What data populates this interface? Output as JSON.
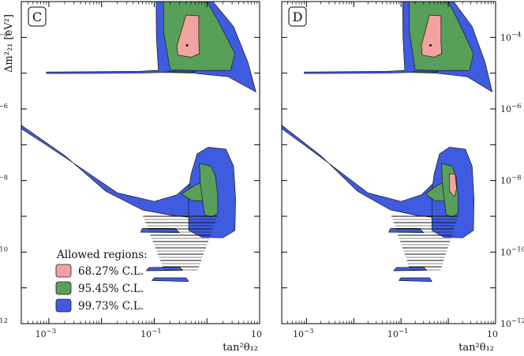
{
  "chart_data": [
    {
      "type": "contour",
      "panel_label": "C",
      "xlabel": "tan²θ₁₂",
      "ylabel": "Δm²₂₁ [eV²]",
      "x_scale": "log",
      "y_scale": "log",
      "xlim": [
        0.0003,
        10
      ],
      "ylim": [
        1e-12,
        0.001
      ],
      "x_ticks": [
        {
          "value": 0.001,
          "base": "10",
          "exp": "−3"
        },
        {
          "value": 0.1,
          "base": "10",
          "exp": "−1"
        },
        {
          "value": 10,
          "base": "10",
          "exp": ""
        }
      ],
      "y_ticks_left": [
        {
          "value": 0.0001,
          "base": "10",
          "exp": "−4"
        },
        {
          "value": 1e-06,
          "base": "10",
          "exp": "−6"
        },
        {
          "value": 1e-08,
          "base": "10",
          "exp": "−8"
        },
        {
          "value": 1e-10,
          "base": "10",
          "exp": "−10"
        },
        {
          "value": 1e-12,
          "base": "10",
          "exp": "−12"
        }
      ],
      "best_fit": {
        "x": 0.42,
        "y": 6e-05
      },
      "legend": {
        "title": "Allowed regions:",
        "placement": "bottom-left",
        "entries": [
          {
            "label": "68.27% C.L.",
            "color": "#f2a3a0"
          },
          {
            "label": "95.45% C.L.",
            "color": "#58a05a"
          },
          {
            "label": "99.73% C.L.",
            "color": "#3f5be0"
          }
        ]
      },
      "regions": [
        {
          "level": "99.73% C.L.",
          "color": "#3f5be0",
          "polygons": [
            [
              [
                0.108,
                0.001
              ],
              [
                1.3,
                0.001
              ],
              [
                3.2,
                0.0002
              ],
              [
                6,
                2e-05
              ],
              [
                8.5,
                3e-06
              ],
              [
                2.5,
                8e-06
              ],
              [
                0.55,
                1e-05
              ],
              [
                0.16,
                1.05e-05
              ],
              [
                0.05,
                1e-05
              ],
              [
                0.0009,
                9.8e-06
              ],
              [
                0.0009,
                1.08e-05
              ],
              [
                0.05,
                1.12e-05
              ],
              [
                0.12,
                1.2e-05
              ],
              [
                0.11,
                0.0001
              ]
            ],
            [
              [
                0.0003,
                2.8e-07
              ],
              [
                0.0003,
                3.5e-07
              ],
              [
                0.002,
                5e-08
              ],
              [
                0.012,
                5e-09
              ],
              [
                0.06,
                1.5e-09
              ],
              [
                0.22,
                1.05e-09
              ],
              [
                0.6,
                9e-10
              ],
              [
                1.2,
                1e-09
              ],
              [
                1.5,
                1.8e-09
              ],
              [
                1.4,
                5e-09
              ],
              [
                1.05,
                1.3e-08
              ],
              [
                0.55,
                1e-08
              ],
              [
                0.27,
                4e-09
              ],
              [
                0.1,
                2.6e-09
              ],
              [
                0.02,
                4.5e-09
              ],
              [
                0.003,
                3e-08
              ],
              [
                0.0008,
                1.1e-07
              ]
            ],
            [
              [
                0.65,
                5.5e-08
              ],
              [
                1.05,
                8.5e-08
              ],
              [
                2.3,
                7.5e-08
              ],
              [
                3.2,
                2.5e-08
              ],
              [
                3.5,
                3e-09
              ],
              [
                3.4,
                4e-10
              ],
              [
                2,
                2.5e-10
              ],
              [
                0.8,
                2.6e-10
              ],
              [
                0.45,
                4e-10
              ],
              [
                0.45,
                5e-09
              ],
              [
                0.5,
                1.5e-08
              ]
            ],
            [
              [
                0.055,
                3.6e-10
              ],
              [
                0.3,
                3.5e-10
              ],
              [
                0.25,
                4.6e-10
              ],
              [
                0.06,
                4.6e-10
              ]
            ],
            [
              [
                0.07,
                3e-11
              ],
              [
                0.35,
                3.1e-11
              ],
              [
                0.3,
                3.8e-11
              ],
              [
                0.08,
                3.7e-11
              ]
            ],
            [
              [
                0.09,
                1.6e-11
              ],
              [
                0.45,
                1.5e-11
              ],
              [
                0.4,
                1.9e-11
              ],
              [
                0.1,
                1.9e-11
              ]
            ]
          ]
        },
        {
          "level": "95.45% C.L.",
          "color": "#58a05a",
          "polygons": [
            [
              [
                0.15,
                0.001
              ],
              [
                1,
                0.001
              ],
              [
                1.6,
                0.0003
              ],
              [
                3.4,
                3.5e-05
              ],
              [
                2.8,
                1.2e-05
              ],
              [
                0.7,
                1.18e-05
              ],
              [
                0.2,
                1.25e-05
              ],
              [
                0.15,
                0.00015
              ]
            ],
            [
              [
                0.17,
                1.07e-05
              ],
              [
                0.5,
                1.04e-05
              ],
              [
                0.6,
                1.12e-05
              ],
              [
                0.2,
                1.14e-05
              ]
            ],
            [
              [
                0.33,
                4.2e-09
              ],
              [
                0.5,
                2.8e-09
              ],
              [
                1.2,
                2.5e-09
              ],
              [
                1.3,
                6e-09
              ],
              [
                1.1,
                1e-08
              ],
              [
                0.6,
                7.5e-09
              ]
            ],
            [
              [
                0.72,
                3e-08
              ],
              [
                1.2,
                2.5e-08
              ],
              [
                1.45,
                1.3e-08
              ],
              [
                1.6,
                4e-09
              ],
              [
                1.6,
                1.2e-09
              ],
              [
                1.2,
                9.5e-10
              ],
              [
                0.9,
                1.1e-09
              ],
              [
                0.75,
                8e-09
              ]
            ]
          ]
        },
        {
          "level": "68.27% C.L.",
          "color": "#f2a3a0",
          "polygons": [
            [
              [
                0.4,
                0.00042
              ],
              [
                0.7,
                0.0004
              ],
              [
                0.7,
                8e-05
              ],
              [
                0.72,
                3.5e-05
              ],
              [
                0.5,
                2.8e-05
              ],
              [
                0.28,
                3.2e-05
              ],
              [
                0.27,
                6e-05
              ],
              [
                0.33,
                0.00016
              ]
            ]
          ]
        }
      ],
      "hatched_band": {
        "x_range": [
          0.05,
          1.4
        ],
        "y_range": [
          3e-11,
          1e-09
        ]
      }
    },
    {
      "type": "contour",
      "panel_label": "D",
      "xlabel": "tan²θ₁₂",
      "ylabel": "",
      "x_scale": "log",
      "y_scale": "log",
      "xlim": [
        0.0003,
        10
      ],
      "ylim": [
        1e-12,
        0.001
      ],
      "x_ticks": [
        {
          "value": 0.001,
          "base": "10",
          "exp": "−3"
        },
        {
          "value": 0.1,
          "base": "10",
          "exp": "−1"
        },
        {
          "value": 10,
          "base": "10",
          "exp": ""
        }
      ],
      "y_ticks_right": [
        {
          "value": 0.0001,
          "base": "10",
          "exp": "−4"
        },
        {
          "value": 1e-06,
          "base": "10",
          "exp": "−6"
        },
        {
          "value": 1e-08,
          "base": "10",
          "exp": "−8"
        },
        {
          "value": 1e-10,
          "base": "10",
          "exp": "−10"
        },
        {
          "value": 1e-12,
          "base": "10",
          "exp": "−12"
        }
      ],
      "best_fit": {
        "x": 0.42,
        "y": 6e-05
      },
      "regions": [
        {
          "level": "99.73% C.L.",
          "color": "#3f5be0",
          "polygons": [
            [
              [
                0.108,
                0.001
              ],
              [
                1.3,
                0.001
              ],
              [
                3.2,
                0.0002
              ],
              [
                6,
                2e-05
              ],
              [
                8.5,
                3e-06
              ],
              [
                2.5,
                8e-06
              ],
              [
                0.55,
                1e-05
              ],
              [
                0.16,
                1.05e-05
              ],
              [
                0.05,
                1e-05
              ],
              [
                0.0009,
                9.8e-06
              ],
              [
                0.0009,
                1.08e-05
              ],
              [
                0.05,
                1.12e-05
              ],
              [
                0.12,
                1.2e-05
              ],
              [
                0.11,
                0.0001
              ]
            ],
            [
              [
                0.0003,
                2.8e-07
              ],
              [
                0.0003,
                3.5e-07
              ],
              [
                0.002,
                5e-08
              ],
              [
                0.012,
                5e-09
              ],
              [
                0.06,
                1.5e-09
              ],
              [
                0.22,
                1.05e-09
              ],
              [
                0.6,
                9e-10
              ],
              [
                1.2,
                1e-09
              ],
              [
                1.5,
                1.8e-09
              ],
              [
                1.4,
                5e-09
              ],
              [
                1.05,
                1.3e-08
              ],
              [
                0.55,
                1e-08
              ],
              [
                0.27,
                4e-09
              ],
              [
                0.1,
                2.6e-09
              ],
              [
                0.02,
                4.5e-09
              ],
              [
                0.003,
                3e-08
              ],
              [
                0.0008,
                1.1e-07
              ]
            ],
            [
              [
                0.65,
                5.5e-08
              ],
              [
                1.05,
                8.5e-08
              ],
              [
                2.3,
                7.5e-08
              ],
              [
                3.2,
                2.5e-08
              ],
              [
                3.5,
                3e-09
              ],
              [
                3.4,
                4e-10
              ],
              [
                2,
                2.5e-10
              ],
              [
                0.8,
                2.6e-10
              ],
              [
                0.45,
                4e-10
              ],
              [
                0.45,
                5e-09
              ],
              [
                0.5,
                1.5e-08
              ]
            ],
            [
              [
                0.055,
                3.6e-10
              ],
              [
                0.3,
                3.5e-10
              ],
              [
                0.25,
                4.6e-10
              ],
              [
                0.06,
                4.6e-10
              ]
            ],
            [
              [
                0.07,
                3e-11
              ],
              [
                0.35,
                3.1e-11
              ],
              [
                0.3,
                3.8e-11
              ],
              [
                0.08,
                3.7e-11
              ]
            ],
            [
              [
                0.09,
                1.6e-11
              ],
              [
                0.45,
                1.5e-11
              ],
              [
                0.4,
                1.9e-11
              ],
              [
                0.1,
                1.9e-11
              ]
            ]
          ]
        },
        {
          "level": "95.45% C.L.",
          "color": "#58a05a",
          "polygons": [
            [
              [
                0.15,
                0.001
              ],
              [
                1,
                0.001
              ],
              [
                1.6,
                0.0003
              ],
              [
                3.4,
                3.5e-05
              ],
              [
                2.8,
                1.2e-05
              ],
              [
                0.7,
                1.18e-05
              ],
              [
                0.2,
                1.25e-05
              ],
              [
                0.15,
                0.00015
              ]
            ],
            [
              [
                0.17,
                1.07e-05
              ],
              [
                0.5,
                1.04e-05
              ],
              [
                0.6,
                1.12e-05
              ],
              [
                0.2,
                1.14e-05
              ]
            ],
            [
              [
                0.33,
                4.2e-09
              ],
              [
                0.5,
                2.8e-09
              ],
              [
                1.2,
                2.5e-09
              ],
              [
                1.3,
                6e-09
              ],
              [
                1.1,
                1e-08
              ],
              [
                0.6,
                7.5e-09
              ]
            ],
            [
              [
                0.72,
                3e-08
              ],
              [
                1.2,
                2.5e-08
              ],
              [
                1.45,
                1.3e-08
              ],
              [
                1.6,
                4e-09
              ],
              [
                1.6,
                1.2e-09
              ],
              [
                1.2,
                9.5e-10
              ],
              [
                0.9,
                1.1e-09
              ],
              [
                0.75,
                8e-09
              ]
            ]
          ]
        },
        {
          "level": "68.27% C.L.",
          "color": "#f2a3a0",
          "polygons": [
            [
              [
                0.4,
                0.00042
              ],
              [
                0.7,
                0.0004
              ],
              [
                0.7,
                8e-05
              ],
              [
                0.72,
                3.5e-05
              ],
              [
                0.5,
                2.8e-05
              ],
              [
                0.28,
                3.2e-05
              ],
              [
                0.27,
                6e-05
              ],
              [
                0.33,
                0.00016
              ]
            ],
            [
              [
                1.05,
                1.55e-08
              ],
              [
                1.4,
                1.5e-08
              ],
              [
                1.5,
                6e-09
              ],
              [
                1.35,
                3.5e-09
              ],
              [
                1.05,
                5e-09
              ]
            ]
          ]
        }
      ],
      "hatched_band": {
        "x_range": [
          0.05,
          1.4
        ],
        "y_range": [
          3e-11,
          1e-09
        ]
      }
    }
  ]
}
